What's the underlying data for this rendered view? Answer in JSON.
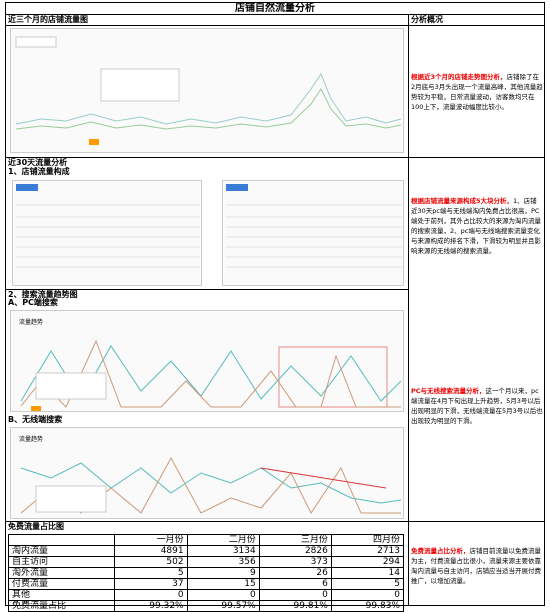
{
  "header": {
    "title": "店铺自然流量分析",
    "side_title": "分析概况"
  },
  "sections": [
    {
      "title": "近三个月的店铺流量图",
      "note_lead": "根据近3个月的店铺走势图分析，",
      "note_body": "店铺除了在2月底与3月头出现一个流量高峰，其他流量趋势较为平稳，日常流量波动，访客数均只在100上下，流量波动幅度比较小。"
    },
    {
      "title": "近30天流量分析",
      "subtitle": "1、店铺流量构成",
      "note_lead": "根据店铺流量来源构成5大块分析，",
      "note_body": "1、店铺近30天pc端与无线端淘内免费占比很高，PC端处于前列，其外占比较大的来源为淘内流量的搜索流量，2、pc端与无线端搜索流量变化与来源构成的排名下滑，下滑较为明显并且影响来源的无线端的搜索流量。"
    },
    {
      "title": "2、搜索流量趋势图",
      "sub_a": "A、PC端搜索",
      "sub_b": "B、无线端搜索",
      "chart_label": "流量趋势",
      "note_lead": "PC与无线搜索流量分析，",
      "note_body": "这一个月以来，pc端流量在4月下旬出现上升趋势，5月3号以后出现明显的下滑，无线端流量在5月3号以后也出现较为明显的下滑。"
    },
    {
      "title": "免费流量占比图",
      "note_lead": "免费流量占比分析，",
      "note_body": "店铺目前流量以免费流量为主，付费流量占比很小，流量来源主要依靠淘内流量与自主访问，店铺应当适当开展付费推广，以增加流量。"
    }
  ],
  "table": {
    "header": [
      "一月份",
      "二月份",
      "三月份",
      "四月份"
    ],
    "rows": [
      [
        "淘内流量",
        "4891",
        "3134",
        "2826",
        "2713"
      ],
      [
        "自主访问",
        "502",
        "356",
        "373",
        "294"
      ],
      [
        "淘外流量",
        "5",
        "9",
        "26",
        "14"
      ],
      [
        "付费流量",
        "37",
        "15",
        "6",
        "5"
      ],
      [
        "其他",
        "0",
        "0",
        "0",
        "0"
      ],
      [
        "免费流量占比",
        "99.32%",
        "99.57%",
        "99.81%",
        "99.83%"
      ]
    ]
  }
}
